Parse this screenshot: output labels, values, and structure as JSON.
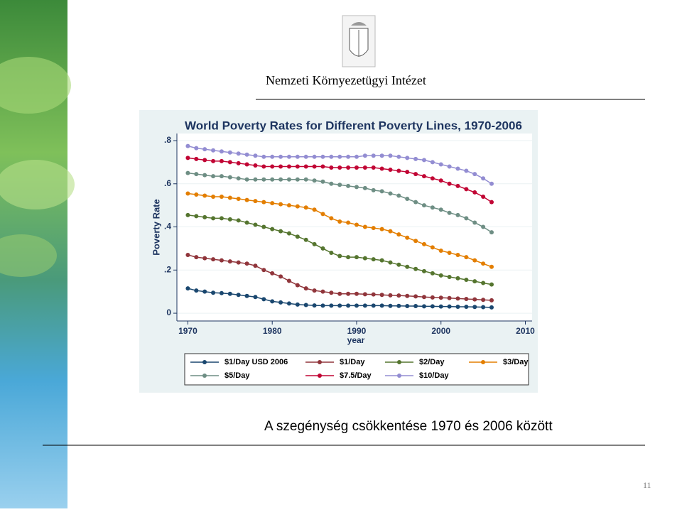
{
  "header": {
    "title": "Nemzeti Környezetügyi Intézet"
  },
  "chart_data": {
    "type": "line",
    "title": "World Poverty Rates for Different Poverty Lines, 1970-2006",
    "x_label": "year",
    "y_label": "Poverty Rate",
    "x": [
      1970,
      1971,
      1972,
      1973,
      1974,
      1975,
      1976,
      1977,
      1978,
      1979,
      1980,
      1981,
      1982,
      1983,
      1984,
      1985,
      1986,
      1987,
      1988,
      1989,
      1990,
      1991,
      1992,
      1993,
      1994,
      1995,
      1996,
      1997,
      1998,
      1999,
      2000,
      2001,
      2002,
      2003,
      2004,
      2005,
      2006
    ],
    "xlim": [
      1968.7,
      2010.8
    ],
    "xticks": [
      1970,
      1980,
      1990,
      2000,
      2010
    ],
    "ylim": [
      -0.036,
      0.833
    ],
    "yticks": [
      0,
      {
        "value": 0.2,
        "label": ".2"
      },
      {
        "value": 0.4,
        "label": ".4"
      },
      {
        "value": 0.6,
        "label": ".6"
      },
      {
        "value": 0.8,
        "label": ".8"
      }
    ],
    "grid": true,
    "series": [
      {
        "name": "$1/Day USD 2006",
        "color": "#1a476f",
        "values": [
          0.115,
          0.105,
          0.1,
          0.095,
          0.093,
          0.09,
          0.085,
          0.08,
          0.075,
          0.065,
          0.055,
          0.05,
          0.045,
          0.04,
          0.038,
          0.036,
          0.035,
          0.035,
          0.035,
          0.035,
          0.035,
          0.035,
          0.035,
          0.035,
          0.034,
          0.034,
          0.033,
          0.033,
          0.032,
          0.032,
          0.031,
          0.031,
          0.03,
          0.03,
          0.029,
          0.028,
          0.027
        ]
      },
      {
        "name": "$1/Day",
        "color": "#90353b",
        "values": [
          0.27,
          0.26,
          0.255,
          0.25,
          0.245,
          0.24,
          0.235,
          0.23,
          0.22,
          0.2,
          0.185,
          0.17,
          0.15,
          0.13,
          0.115,
          0.105,
          0.1,
          0.095,
          0.09,
          0.09,
          0.09,
          0.088,
          0.087,
          0.085,
          0.083,
          0.082,
          0.08,
          0.078,
          0.075,
          0.073,
          0.072,
          0.07,
          0.068,
          0.066,
          0.064,
          0.062,
          0.06
        ]
      },
      {
        "name": "$2/Day",
        "color": "#55752f",
        "values": [
          0.455,
          0.45,
          0.445,
          0.44,
          0.44,
          0.435,
          0.43,
          0.42,
          0.41,
          0.4,
          0.39,
          0.38,
          0.37,
          0.355,
          0.34,
          0.32,
          0.3,
          0.28,
          0.265,
          0.26,
          0.26,
          0.255,
          0.25,
          0.245,
          0.235,
          0.225,
          0.215,
          0.205,
          0.195,
          0.185,
          0.175,
          0.168,
          0.162,
          0.155,
          0.148,
          0.14,
          0.133
        ]
      },
      {
        "name": "$3/Day",
        "color": "#e37e00",
        "values": [
          0.555,
          0.55,
          0.545,
          0.54,
          0.54,
          0.535,
          0.53,
          0.525,
          0.52,
          0.515,
          0.51,
          0.505,
          0.5,
          0.495,
          0.49,
          0.48,
          0.46,
          0.44,
          0.425,
          0.42,
          0.41,
          0.4,
          0.395,
          0.39,
          0.38,
          0.365,
          0.35,
          0.335,
          0.32,
          0.305,
          0.29,
          0.28,
          0.27,
          0.26,
          0.245,
          0.23,
          0.215
        ]
      },
      {
        "name": "$5/Day",
        "color": "#6e8e84",
        "values": [
          0.65,
          0.645,
          0.64,
          0.635,
          0.635,
          0.63,
          0.625,
          0.62,
          0.62,
          0.62,
          0.62,
          0.62,
          0.62,
          0.62,
          0.62,
          0.615,
          0.61,
          0.6,
          0.595,
          0.59,
          0.585,
          0.58,
          0.57,
          0.565,
          0.555,
          0.545,
          0.53,
          0.515,
          0.5,
          0.49,
          0.48,
          0.465,
          0.455,
          0.44,
          0.42,
          0.4,
          0.375
        ]
      },
      {
        "name": "$7.5/Day",
        "color": "#c10534",
        "values": [
          0.72,
          0.715,
          0.71,
          0.705,
          0.705,
          0.7,
          0.695,
          0.69,
          0.685,
          0.68,
          0.68,
          0.68,
          0.68,
          0.68,
          0.68,
          0.68,
          0.68,
          0.675,
          0.675,
          0.675,
          0.675,
          0.675,
          0.675,
          0.67,
          0.665,
          0.66,
          0.655,
          0.645,
          0.635,
          0.625,
          0.615,
          0.6,
          0.59,
          0.575,
          0.56,
          0.54,
          0.515
        ]
      },
      {
        "name": "$10/Day",
        "color": "#938dd2",
        "values": [
          0.775,
          0.765,
          0.76,
          0.755,
          0.75,
          0.745,
          0.74,
          0.735,
          0.73,
          0.725,
          0.725,
          0.725,
          0.725,
          0.725,
          0.725,
          0.725,
          0.725,
          0.725,
          0.725,
          0.725,
          0.725,
          0.73,
          0.73,
          0.73,
          0.73,
          0.725,
          0.72,
          0.715,
          0.71,
          0.7,
          0.69,
          0.68,
          0.67,
          0.66,
          0.645,
          0.625,
          0.6
        ]
      }
    ]
  },
  "caption": "A szegénység csökkentése 1970 és 2006 között",
  "page_number": "11"
}
